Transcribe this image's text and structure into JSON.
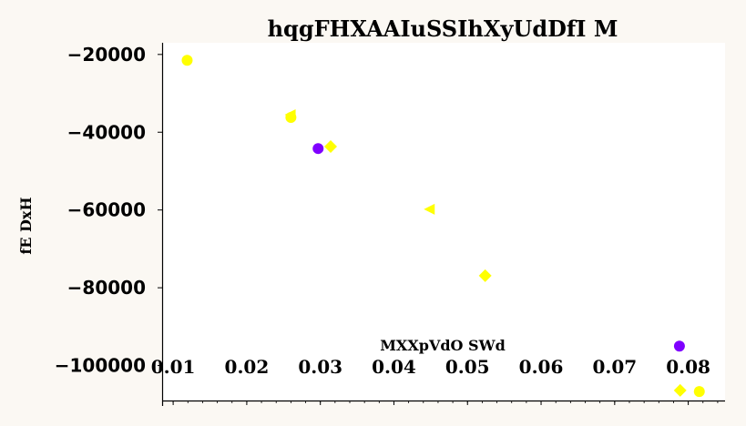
{
  "chart_data": {
    "type": "scatter",
    "title": "hqgFHXAAIuSSIhXyUdDfI M",
    "xlabel": "MXXpVdO SWd",
    "ylabel": "fE DxH",
    "xlim": [
      0.0085,
      0.085
    ],
    "ylim": [
      -109000,
      -17000
    ],
    "x_ticks": [
      0.01,
      0.02,
      0.03,
      0.04,
      0.05,
      0.06,
      0.07,
      0.08
    ],
    "x_tick_labels": [
      "0.01",
      "0.02",
      "0.03",
      "0.04",
      "0.05",
      "0.06",
      "0.07",
      "0.08"
    ],
    "y_ticks": [
      -20000,
      -40000,
      -60000,
      -80000,
      -100000
    ],
    "y_tick_labels": [
      "−20000",
      "−40000",
      "−60000",
      "−80000",
      "−100000"
    ],
    "grid": false,
    "colors": {
      "yellow": "#ffff00",
      "purple": "#7f00ff",
      "background": "#fbf8f3",
      "plot_bg": "#ffffff"
    },
    "points": [
      {
        "x": 0.0119,
        "y": -21500,
        "marker": "circle",
        "color": "#ffff00"
      },
      {
        "x": 0.0259,
        "y": -35500,
        "marker": "triangle-left",
        "color": "#ffff00"
      },
      {
        "x": 0.026,
        "y": -36200,
        "marker": "circle",
        "color": "#ffff00"
      },
      {
        "x": 0.0297,
        "y": -44200,
        "marker": "circle",
        "color": "#7f00ff"
      },
      {
        "x": 0.0314,
        "y": -43700,
        "marker": "diamond",
        "color": "#ffff00"
      },
      {
        "x": 0.0448,
        "y": -59800,
        "marker": "triangle-left",
        "color": "#ffff00"
      },
      {
        "x": 0.0524,
        "y": -76900,
        "marker": "diamond",
        "color": "#ffff00"
      },
      {
        "x": 0.0788,
        "y": -95000,
        "marker": "circle",
        "color": "#7f00ff"
      },
      {
        "x": 0.0789,
        "y": -106400,
        "marker": "diamond",
        "color": "#ffff00"
      },
      {
        "x": 0.0815,
        "y": -106700,
        "marker": "circle",
        "color": "#ffff00"
      }
    ]
  }
}
